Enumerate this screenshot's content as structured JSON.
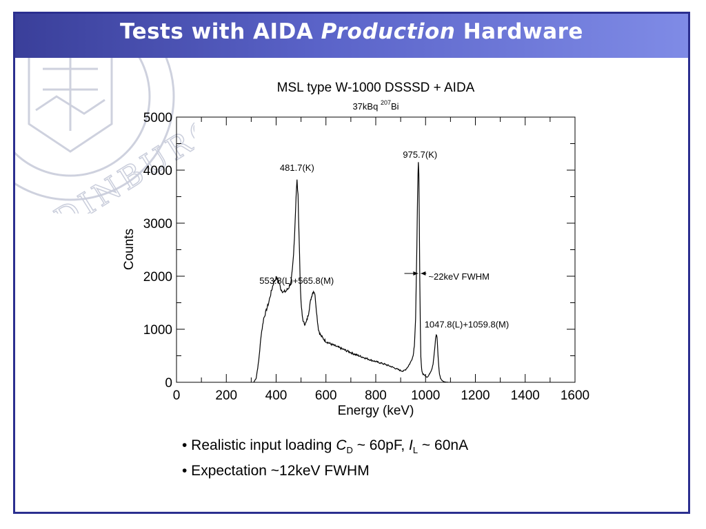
{
  "slide": {
    "title_part1": "Tests with AIDA ",
    "title_emph": "Production",
    "title_part2": " Hardware",
    "watermark_text": "EDINBURGH"
  },
  "bullets": [
    {
      "prefix": "• Realistic input loading  ",
      "c_sym": "C",
      "c_sub": "D",
      "c_val": " ~ 60pF, ",
      "i_sym": "I",
      "i_sub": "L",
      "i_val": " ~ 60nA"
    },
    {
      "text": "• Expectation ~12keV FWHM"
    }
  ],
  "chart_data": {
    "type": "line",
    "title": "MSL type W-1000 DSSSD + AIDA",
    "subtitle_prefix": "37kBq ",
    "subtitle_sup": "207",
    "subtitle_suffix": "Bi",
    "xlabel": "Energy (keV)",
    "ylabel": "Counts",
    "xlim": [
      0,
      1600
    ],
    "ylim": [
      0,
      5000
    ],
    "xticks": [
      0,
      200,
      400,
      600,
      800,
      1000,
      1200,
      1400,
      1600
    ],
    "yticks": [
      0,
      1000,
      2000,
      3000,
      4000,
      5000
    ],
    "grid": false,
    "series": [
      {
        "x": [
          310,
          320,
          330,
          340,
          350,
          360,
          370,
          380,
          390,
          400,
          410,
          420,
          430,
          440,
          450,
          460,
          465,
          470,
          475,
          480,
          484,
          488,
          492,
          496,
          500,
          505,
          510,
          515,
          520,
          525,
          530,
          535,
          540,
          545,
          550,
          554,
          558,
          562,
          566,
          570,
          575,
          580,
          590,
          600,
          620,
          650,
          680,
          700,
          720,
          750,
          780,
          800,
          830,
          860,
          880,
          900,
          910,
          920,
          930,
          940,
          950,
          955,
          960,
          965,
          968,
          971,
          973,
          975,
          977,
          979,
          981,
          984,
          987,
          990,
          995,
          1000,
          1005,
          1010,
          1015,
          1020,
          1025,
          1030,
          1035,
          1040,
          1043,
          1046,
          1048,
          1050,
          1053,
          1056,
          1060,
          1065,
          1070,
          1075,
          1080,
          1085,
          1090
        ],
        "y": [
          0,
          80,
          400,
          900,
          1200,
          1350,
          1500,
          1700,
          1880,
          1970,
          1900,
          1750,
          1700,
          1720,
          1780,
          1900,
          2100,
          2400,
          2900,
          3500,
          3800,
          3500,
          2800,
          2000,
          1500,
          1250,
          1130,
          1100,
          1120,
          1200,
          1300,
          1450,
          1580,
          1670,
          1720,
          1700,
          1550,
          1350,
          1150,
          1000,
          920,
          880,
          820,
          770,
          720,
          660,
          600,
          560,
          520,
          470,
          420,
          390,
          350,
          300,
          260,
          220,
          210,
          240,
          300,
          380,
          500,
          700,
          1200,
          2500,
          3600,
          4100,
          3900,
          3000,
          1900,
          1000,
          500,
          260,
          180,
          150,
          140,
          120,
          100,
          110,
          150,
          200,
          250,
          350,
          550,
          800,
          900,
          850,
          700,
          500,
          300,
          150,
          80,
          40,
          20,
          10,
          5,
          2,
          0
        ]
      }
    ],
    "annotations": [
      {
        "text": "481.7(K)",
        "x": 484,
        "y": 4050
      },
      {
        "text": "975.7(K)",
        "x": 978,
        "y": 4300
      },
      {
        "text": "553.8(L)+565.8(M)",
        "x": 510,
        "y": 1920
      },
      {
        "text": "~22keV FWHM",
        "x": 995,
        "y": 2000
      },
      {
        "text": "1047.8(L)+1059.8(M)",
        "x": 1040,
        "y": 1100
      }
    ],
    "fwhm_arrow": {
      "left": 915,
      "right": 1003,
      "y": 2000
    }
  }
}
